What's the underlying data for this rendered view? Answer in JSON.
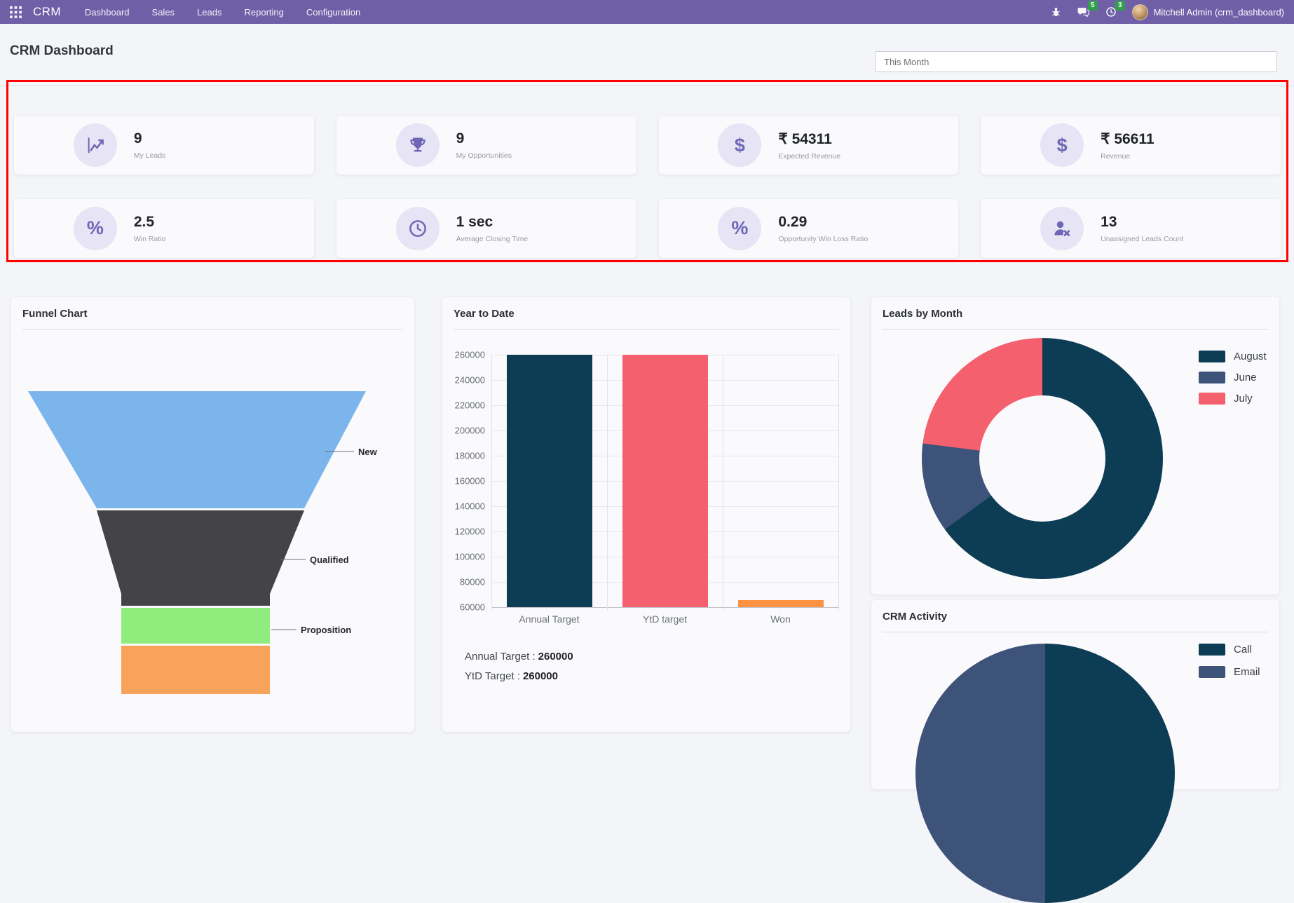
{
  "navbar": {
    "brand": "CRM",
    "menu": [
      "Dashboard",
      "Sales",
      "Leads",
      "Reporting",
      "Configuration"
    ],
    "badges": {
      "messages": "5",
      "activities": "3"
    },
    "user": "Mitchell Admin (crm_dashboard)",
    "color": "#6e5fa7",
    "badge_color": "#2ca444"
  },
  "header": {
    "title": "CRM Dashboard",
    "period_filter": "This Month"
  },
  "highlight_border_color": "#ff0000",
  "kpi_style": {
    "icon_bg": "#e6e4f5",
    "icon_color": "#6f67b6"
  },
  "kpis": [
    {
      "icon": "trend-icon",
      "value": "9",
      "label": "My Leads"
    },
    {
      "icon": "trophy-icon",
      "value": "9",
      "label": "My Opportunities"
    },
    {
      "icon": "dollar-icon",
      "value": "₹ 54311",
      "label": "Expected Revenue"
    },
    {
      "icon": "dollar-icon",
      "value": "₹ 56611",
      "label": "Revenue"
    },
    {
      "icon": "percent-icon",
      "value": "2.5",
      "label": "Win Ratio"
    },
    {
      "icon": "clock-icon",
      "value": "1 sec",
      "label": "Average Closing Time"
    },
    {
      "icon": "percent-icon",
      "value": "0.29",
      "label": "Opportunity Win Loss Ratio"
    },
    {
      "icon": "person-x-icon",
      "value": "13",
      "label": "Unassigned Leads Count"
    }
  ],
  "chart_data": [
    {
      "type": "funnel",
      "title": "Funnel Chart",
      "segments": [
        {
          "label": "New",
          "color": "#7cb5ec"
        },
        {
          "label": "Qualified",
          "color": "#434348"
        },
        {
          "label": "Proposition",
          "color": "#90ed7d"
        },
        {
          "label": "",
          "color": "#f7a35c"
        }
      ]
    },
    {
      "type": "bar",
      "title": "Year to Date",
      "categories": [
        "Annual Target",
        "YtD target",
        "Won"
      ],
      "values": [
        260000,
        260000,
        65500
      ],
      "colors": [
        "#0d3c55",
        "#f5606e",
        "#fd9242"
      ],
      "ylim": [
        60000,
        260000
      ],
      "yticks": [
        60000,
        80000,
        100000,
        120000,
        140000,
        160000,
        180000,
        200000,
        220000,
        240000,
        260000
      ],
      "grid": true,
      "annotations": [
        {
          "label": "Annual Target :",
          "value": "260000"
        },
        {
          "label": "YtD Target :",
          "value": "260000"
        }
      ]
    },
    {
      "type": "pie",
      "subtype": "donut",
      "title": "Leads by Month",
      "legend_position": "right",
      "labels": [
        "August",
        "June",
        "July"
      ],
      "values_pct": [
        65,
        12,
        23
      ],
      "colors": [
        "#0d3c55",
        "#3e5379",
        "#f5606e"
      ]
    },
    {
      "type": "pie",
      "title": "CRM Activity",
      "legend_position": "right",
      "labels": [
        "Call",
        "Email"
      ],
      "values_pct": [
        50,
        50
      ],
      "colors": [
        "#0d3c55",
        "#3e5379"
      ]
    }
  ]
}
